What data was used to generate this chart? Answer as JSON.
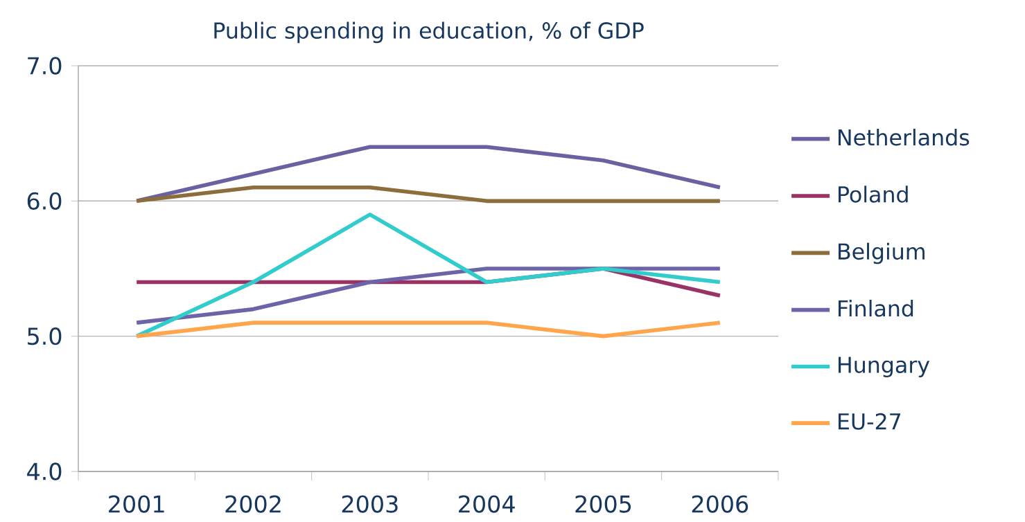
{
  "chart_data": {
    "type": "line",
    "title": "Public spending in education, % of GDP",
    "categories": [
      "2001",
      "2002",
      "2003",
      "2004",
      "2005",
      "2006"
    ],
    "series": [
      {
        "name": "Netherlands",
        "color": "#6a62a0",
        "values": [
          6.0,
          6.2,
          6.4,
          6.4,
          6.3,
          6.1
        ]
      },
      {
        "name": "Poland",
        "color": "#993366",
        "values": [
          5.4,
          5.4,
          5.4,
          5.4,
          5.5,
          5.3
        ]
      },
      {
        "name": "Belgium",
        "color": "#8c6d3c",
        "values": [
          6.0,
          6.1,
          6.1,
          6.0,
          6.0,
          6.0
        ]
      },
      {
        "name": "Finland",
        "color": "#6c64a8",
        "values": [
          5.1,
          5.2,
          5.4,
          5.5,
          5.5,
          5.5
        ]
      },
      {
        "name": "Hungary",
        "color": "#33cccc",
        "values": [
          5.0,
          5.4,
          5.9,
          5.4,
          5.5,
          5.4
        ]
      },
      {
        "name": "EU-27",
        "color": "#ffa64d",
        "values": [
          5.0,
          5.1,
          5.1,
          5.1,
          5.0,
          5.1
        ]
      }
    ],
    "ylim": [
      4,
      7
    ],
    "yticks": [
      {
        "value": 4,
        "label": "4.0"
      },
      {
        "value": 5,
        "label": "5.0"
      },
      {
        "value": 6,
        "label": "6.0"
      },
      {
        "value": 7,
        "label": "7.0"
      }
    ],
    "grid": "y",
    "legend": "right",
    "marker": "none",
    "line_style": "solid"
  }
}
